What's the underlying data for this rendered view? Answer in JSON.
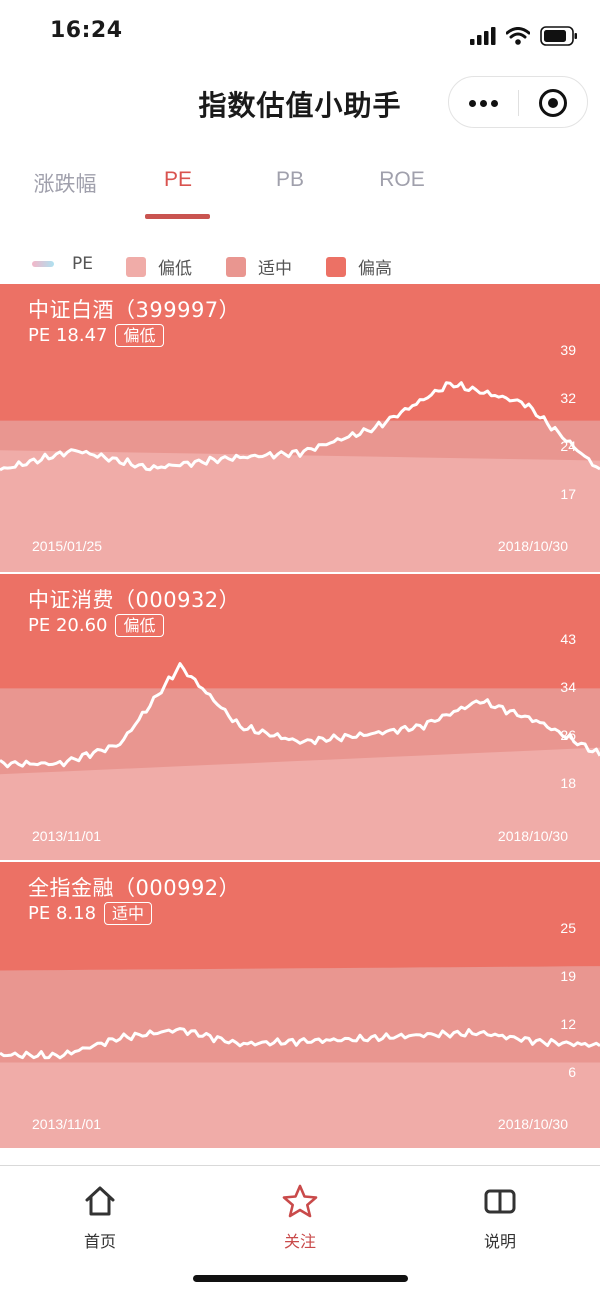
{
  "status_bar": {
    "time": "16:24"
  },
  "nav": {
    "title": "指数估值小助手"
  },
  "tabs": [
    {
      "label": "涨跌幅",
      "active": false
    },
    {
      "label": "PE",
      "active": true
    },
    {
      "label": "PB",
      "active": false
    },
    {
      "label": "ROE",
      "active": false
    }
  ],
  "legend": [
    {
      "label": "PE",
      "kind": "line"
    },
    {
      "label": "偏低",
      "color": "#f0aca8"
    },
    {
      "label": "适中",
      "color": "#e99690"
    },
    {
      "label": "偏高",
      "color": "#ec7165"
    }
  ],
  "cards": [
    {
      "name": "中证白酒（399997）",
      "pe_label": "PE 18.47",
      "badge": "偏低",
      "start_date": "2015/01/25",
      "end_date": "2018/10/30",
      "yticks": [
        "39",
        "32",
        "24",
        "17"
      ]
    },
    {
      "name": "中证消费（000932）",
      "pe_label": "PE 20.60",
      "badge": "偏低",
      "start_date": "2013/11/01",
      "end_date": "2018/10/30",
      "yticks": [
        "43",
        "34",
        "26",
        "18"
      ]
    },
    {
      "name": "全指金融（000992）",
      "pe_label": "PE 8.18",
      "badge": "适中",
      "start_date": "2013/11/01",
      "end_date": "2018/10/30",
      "yticks": [
        "25",
        "19",
        "12",
        "6"
      ]
    }
  ],
  "chart_data": [
    {
      "type": "area",
      "x": [
        "2015/01/25",
        "2015/07",
        "2016/01",
        "2016/07",
        "2017/01",
        "2017/07",
        "2018/01",
        "2018/06",
        "2018/10/30"
      ],
      "series": [
        {
          "name": "PE",
          "values": [
            18.5,
            22.5,
            18.8,
            20.8,
            22.0,
            27.0,
            36.0,
            32.0,
            18.47
          ]
        }
      ],
      "ylim": [
        12,
        42
      ],
      "yticks": [
        39,
        32,
        24,
        17
      ]
    },
    {
      "type": "area",
      "x": [
        "2013/11/01",
        "2014/06",
        "2015/01",
        "2015/06",
        "2016/01",
        "2016/07",
        "2017/01",
        "2017/07",
        "2018/01",
        "2018/06",
        "2018/10/30"
      ],
      "series": [
        {
          "name": "PE",
          "values": [
            18.5,
            18.5,
            23.0,
            41.0,
            27.0,
            23.5,
            25.0,
            27.0,
            33.0,
            28.0,
            20.6
          ]
        }
      ],
      "ylim": [
        12,
        46
      ],
      "yticks": [
        43,
        34,
        26,
        18
      ]
    },
    {
      "type": "area",
      "x": [
        "2013/11/01",
        "2014/06",
        "2014/12",
        "2015/06",
        "2016/01",
        "2016/07",
        "2017/01",
        "2017/07",
        "2018/01",
        "2018/06",
        "2018/10/30"
      ],
      "series": [
        {
          "name": "PE",
          "values": [
            6.5,
            6.3,
            9.5,
            11.0,
            8.4,
            8.9,
            9.3,
            10.0,
            10.4,
            8.8,
            8.18
          ]
        }
      ],
      "ylim": [
        2,
        28
      ],
      "yticks": [
        25,
        19,
        12,
        6
      ]
    }
  ],
  "tab_bar": [
    {
      "label": "首页",
      "icon": "home-icon",
      "active": false
    },
    {
      "label": "关注",
      "icon": "star-icon",
      "active": true
    },
    {
      "label": "说明",
      "icon": "book-icon",
      "active": false
    }
  ]
}
